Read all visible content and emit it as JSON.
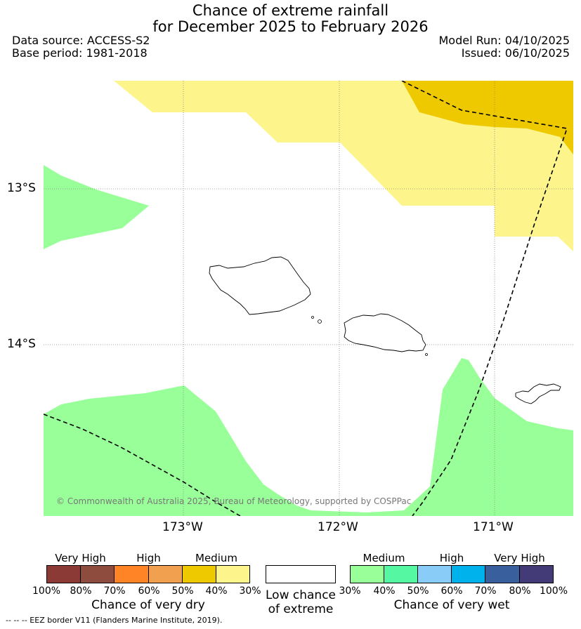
{
  "header": {
    "title_line1": "Chance of extreme rainfall",
    "title_line2": "for December 2025 to February 2026",
    "data_source": "Data source: ACCESS-S2",
    "base_period": "Base period: 1981-2018",
    "model_run": "Model Run: 04/10/2025",
    "issued": "Issued: 06/10/2025"
  },
  "map": {
    "lat_labels": [
      "13°S",
      "14°S"
    ],
    "lon_labels": [
      "173°W",
      "172°W",
      "171°W"
    ],
    "copyright": "© Commonwealth of Australia 2025, Bureau of Meteorology, supported by COSPPac",
    "regions": [
      {
        "name": "dry-medium-30-40",
        "color": "#fdf58c"
      },
      {
        "name": "dry-medium-40-50",
        "color": "#eec900"
      },
      {
        "name": "wet-medium-30-40",
        "color": "#99ff99"
      }
    ]
  },
  "legend": {
    "dry": {
      "levels": [
        {
          "label": "Very High",
          "colors": [
            "#8b3a35",
            "#8d4c3e"
          ]
        },
        {
          "label": "High",
          "colors": [
            "#ff8426",
            "#f0a04e"
          ]
        },
        {
          "label": "Medium",
          "colors": [
            "#eec900",
            "#fdf58c"
          ]
        }
      ],
      "ticks": [
        "100%",
        "80%",
        "70%",
        "60%",
        "50%",
        "40%",
        "30%"
      ],
      "caption": "Chance of very dry"
    },
    "neutral": {
      "caption_line1": "Low chance",
      "caption_line2": "of extreme",
      "color": "#ffffff"
    },
    "wet": {
      "levels": [
        {
          "label": "Medium",
          "colors": [
            "#99ff99",
            "#55f7a2"
          ]
        },
        {
          "label": "High",
          "colors": [
            "#88ccf7",
            "#00b2ec"
          ]
        },
        {
          "label": "Very High",
          "colors": [
            "#3a5f9d",
            "#423b78"
          ]
        }
      ],
      "ticks": [
        "30%",
        "40%",
        "50%",
        "60%",
        "70%",
        "80%",
        "100%"
      ],
      "caption": "Chance of very wet"
    }
  },
  "footer": {
    "eez_note": "--  --  -- EEZ border V11 (Flanders Marine Institute, 2019)."
  }
}
